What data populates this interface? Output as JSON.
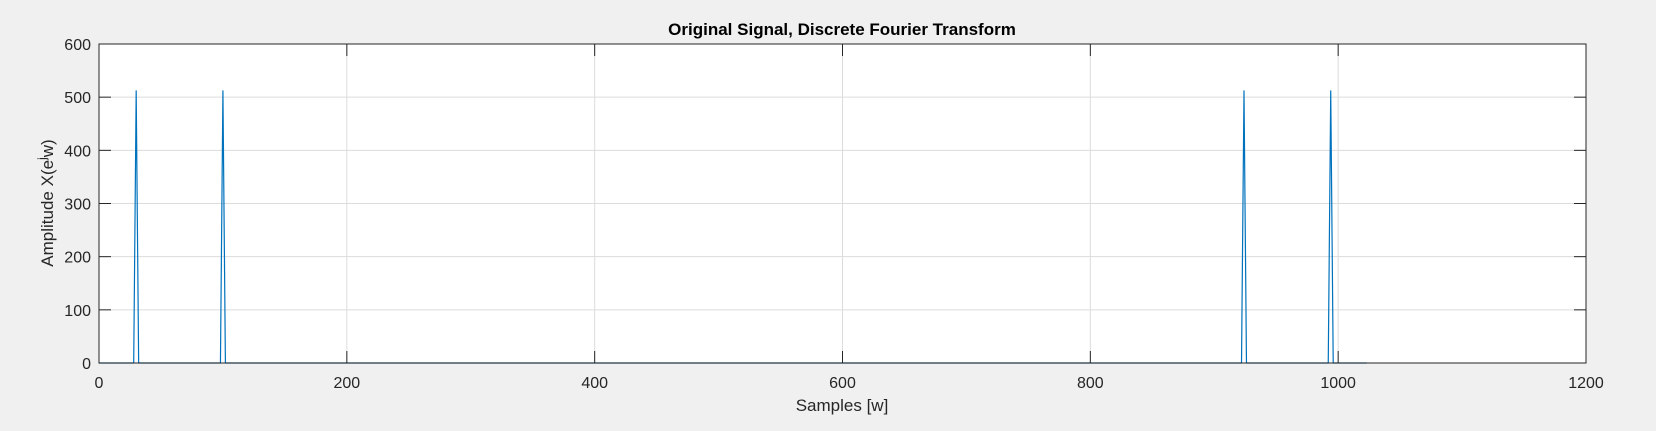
{
  "chart_data": {
    "type": "line",
    "title": "Original Signal, Discrete Fourier Transform",
    "xlabel": "Samples [w]",
    "ylabel": "Amplitude X(e^jw)",
    "ylabel_parts": {
      "pre": "Amplitude X(e",
      "sup": "j",
      "post": "w)"
    },
    "xlim": [
      0,
      1200
    ],
    "ylim": [
      0,
      600
    ],
    "xticks": [
      0,
      200,
      400,
      600,
      800,
      1000,
      1200
    ],
    "yticks": [
      0,
      100,
      200,
      300,
      400,
      500,
      600
    ],
    "grid": true,
    "series": [
      {
        "color": "#0072bd",
        "x": [
          0,
          28,
          30,
          32,
          98,
          100,
          102,
          922,
          924,
          926,
          992,
          994,
          996,
          1023
        ],
        "y": [
          0,
          0,
          512,
          0,
          0,
          512,
          0,
          0,
          512,
          0,
          0,
          512,
          0,
          0
        ]
      }
    ]
  }
}
